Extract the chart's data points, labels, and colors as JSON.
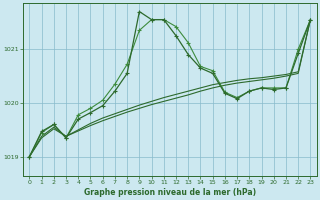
{
  "title": "Graphe pression niveau de la mer (hPa)",
  "bg_color": "#cce8f0",
  "grid_color": "#88bbcc",
  "line_color_main": "#2d6a2d",
  "line_color_light": "#3d8c3d",
  "xlim": [
    -0.5,
    23.5
  ],
  "ylim": [
    1018.65,
    1021.85
  ],
  "yticks": [
    1019,
    1020,
    1021
  ],
  "xticks": [
    0,
    1,
    2,
    3,
    4,
    5,
    6,
    7,
    8,
    9,
    10,
    11,
    12,
    13,
    14,
    15,
    16,
    17,
    18,
    19,
    20,
    21,
    22,
    23
  ],
  "s1_x": [
    0,
    1,
    2,
    3,
    4,
    5,
    6,
    7,
    8,
    9,
    10,
    11,
    12,
    13,
    14,
    15,
    16,
    17,
    18,
    19,
    20,
    21,
    22,
    23
  ],
  "s1_y": [
    1019.0,
    1019.35,
    1019.52,
    1019.38,
    1019.48,
    1019.58,
    1019.67,
    1019.75,
    1019.83,
    1019.9,
    1019.97,
    1020.03,
    1020.09,
    1020.15,
    1020.22,
    1020.28,
    1020.33,
    1020.37,
    1020.4,
    1020.43,
    1020.46,
    1020.5,
    1020.55,
    1021.55
  ],
  "s2_x": [
    0,
    1,
    2,
    3,
    4,
    5,
    6,
    7,
    8,
    9,
    10,
    11,
    12,
    13,
    14,
    15,
    16,
    17,
    18,
    19,
    20,
    21,
    22,
    23
  ],
  "s2_y": [
    1019.0,
    1019.38,
    1019.55,
    1019.38,
    1019.5,
    1019.62,
    1019.72,
    1019.8,
    1019.88,
    1019.96,
    1020.03,
    1020.1,
    1020.16,
    1020.22,
    1020.28,
    1020.34,
    1020.38,
    1020.42,
    1020.45,
    1020.47,
    1020.5,
    1020.53,
    1020.58,
    1021.55
  ],
  "s3_x": [
    0,
    1,
    2,
    3,
    4,
    5,
    6,
    7,
    8,
    9,
    10,
    11,
    12,
    13,
    14,
    15,
    16,
    17,
    18,
    19,
    20,
    21,
    22,
    23
  ],
  "s3_y": [
    1019.0,
    1019.45,
    1019.6,
    1019.35,
    1019.78,
    1019.9,
    1020.05,
    1020.35,
    1020.72,
    1021.35,
    1021.55,
    1021.55,
    1021.42,
    1021.12,
    1020.68,
    1020.6,
    1020.2,
    1020.1,
    1020.22,
    1020.28,
    1020.28,
    1020.28,
    1021.0,
    1021.55
  ],
  "s4_x": [
    0,
    1,
    2,
    3,
    4,
    5,
    6,
    7,
    8,
    9,
    10,
    11,
    12,
    13,
    14,
    15,
    16,
    17,
    18,
    19,
    20,
    21,
    22,
    23
  ],
  "s4_y": [
    1019.0,
    1019.47,
    1019.6,
    1019.35,
    1019.7,
    1019.82,
    1019.95,
    1020.22,
    1020.55,
    1021.7,
    1021.55,
    1021.55,
    1021.25,
    1020.9,
    1020.65,
    1020.55,
    1020.18,
    1020.08,
    1020.22,
    1020.28,
    1020.25,
    1020.28,
    1020.92,
    1021.55
  ]
}
